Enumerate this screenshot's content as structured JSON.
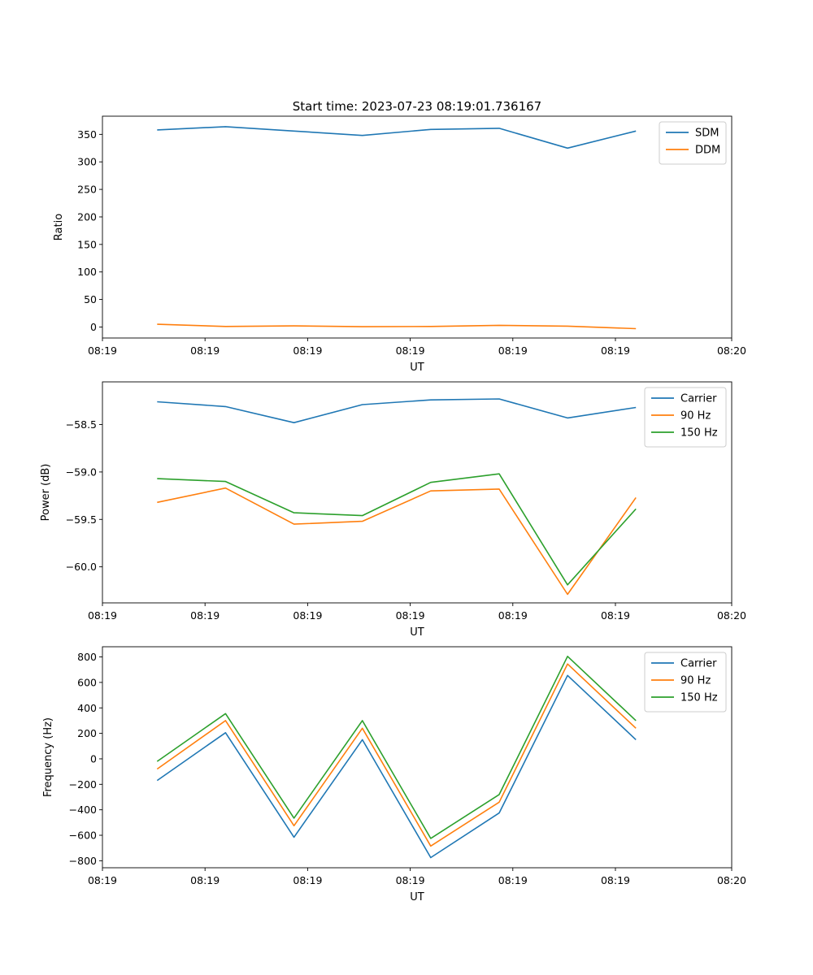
{
  "title": "Start time: 2023-07-23 08:19:01.736167",
  "colors": {
    "blue": "#1f77b4",
    "orange": "#ff7f0e",
    "green": "#2ca02c"
  },
  "chart_data": [
    {
      "type": "line",
      "xlabel": "UT",
      "ylabel": "Ratio",
      "x": [
        1,
        2,
        3,
        4,
        5,
        6,
        7,
        8
      ],
      "xlim": [
        0.2,
        9.4
      ],
      "xticks": [
        0.2,
        1.7,
        3.2,
        4.7,
        6.2,
        7.7,
        9.4
      ],
      "xtick_labels": [
        "08:19",
        "08:19",
        "08:19",
        "08:19",
        "08:19",
        "08:19",
        "08:20"
      ],
      "ylim": [
        -20,
        383
      ],
      "yticks": [
        0,
        50,
        100,
        150,
        200,
        250,
        300,
        350
      ],
      "ytick_labels": [
        "0",
        "50",
        "100",
        "150",
        "200",
        "250",
        "300",
        "350"
      ],
      "legend": "top-right",
      "series": [
        {
          "name": "SDM",
          "color": "#1f77b4",
          "values": [
            358,
            364,
            356,
            348,
            359,
            361,
            325,
            356
          ]
        },
        {
          "name": "DDM",
          "color": "#ff7f0e",
          "values": [
            5,
            1,
            2,
            0.5,
            1,
            3,
            1.5,
            -3
          ]
        }
      ]
    },
    {
      "type": "line",
      "xlabel": "UT",
      "ylabel": "Power (dB)",
      "x": [
        1,
        2,
        3,
        4,
        5,
        6,
        7,
        8
      ],
      "xlim": [
        0.2,
        9.4
      ],
      "xticks": [
        0.2,
        1.7,
        3.2,
        4.7,
        6.2,
        7.7,
        9.4
      ],
      "xtick_labels": [
        "08:19",
        "08:19",
        "08:19",
        "08:19",
        "08:19",
        "08:19",
        "08:20"
      ],
      "ylim": [
        -60.38,
        -58.05
      ],
      "yticks": [
        -60.0,
        -59.5,
        -59.0,
        -58.5
      ],
      "ytick_labels": [
        "−60.0",
        "−59.5",
        "−59.0",
        "−58.5"
      ],
      "legend": "top-right",
      "series": [
        {
          "name": "Carrier",
          "color": "#1f77b4",
          "values": [
            -58.26,
            -58.31,
            -58.48,
            -58.29,
            -58.24,
            -58.23,
            -58.43,
            -58.32
          ]
        },
        {
          "name": "90 Hz",
          "color": "#ff7f0e",
          "values": [
            -59.32,
            -59.17,
            -59.55,
            -59.52,
            -59.2,
            -59.18,
            -60.29,
            -59.27
          ]
        },
        {
          "name": "150 Hz",
          "color": "#2ca02c",
          "values": [
            -59.07,
            -59.1,
            -59.43,
            -59.46,
            -59.11,
            -59.02,
            -60.19,
            -59.39
          ]
        }
      ]
    },
    {
      "type": "line",
      "xlabel": "UT",
      "ylabel": "Frequency (Hz)",
      "x": [
        1,
        2,
        3,
        4,
        5,
        6,
        7,
        8
      ],
      "xlim": [
        0.2,
        9.4
      ],
      "xticks": [
        0.2,
        1.7,
        3.2,
        4.7,
        6.2,
        7.7,
        9.4
      ],
      "xtick_labels": [
        "08:19",
        "08:19",
        "08:19",
        "08:19",
        "08:19",
        "08:19",
        "08:20"
      ],
      "ylim": [
        -855,
        880
      ],
      "yticks": [
        -800,
        -600,
        -400,
        -200,
        0,
        200,
        400,
        600,
        800
      ],
      "ytick_labels": [
        "−800",
        "−600",
        "−400",
        "−200",
        "0",
        "200",
        "400",
        "600",
        "800"
      ],
      "legend": "top-right",
      "series": [
        {
          "name": "Carrier",
          "color": "#1f77b4",
          "values": [
            -170,
            205,
            -615,
            150,
            -775,
            -425,
            655,
            150
          ]
        },
        {
          "name": "90 Hz",
          "color": "#ff7f0e",
          "values": [
            -80,
            300,
            -525,
            240,
            -685,
            -340,
            745,
            240
          ]
        },
        {
          "name": "150 Hz",
          "color": "#2ca02c",
          "values": [
            -20,
            355,
            -465,
            300,
            -625,
            -280,
            805,
            300
          ]
        }
      ]
    }
  ]
}
